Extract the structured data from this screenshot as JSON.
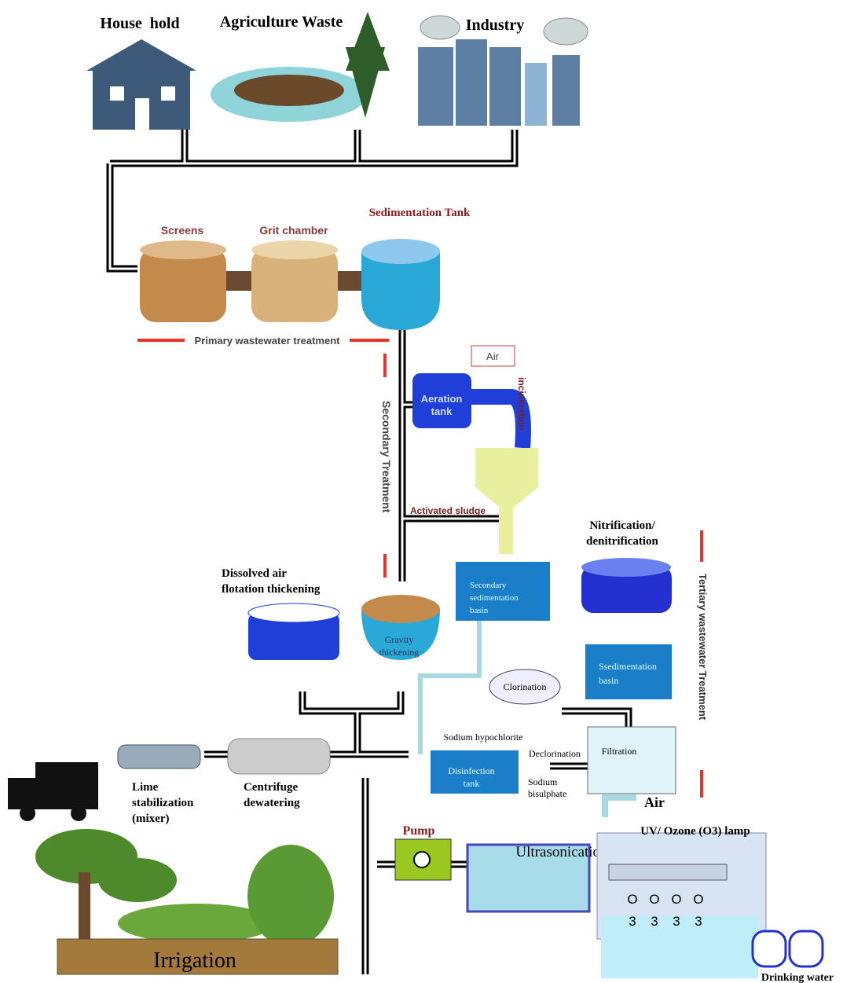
{
  "sources": {
    "household": "House  hold",
    "agriculture": "Agriculture Waste",
    "industry": "Industry"
  },
  "primary": {
    "sedimentation_tank": "Sedimentation Tank",
    "screens": "Screens",
    "grit_chamber": "Grit chamber",
    "label": "Primary wastewater treatment"
  },
  "secondary": {
    "label": "Secondary Treatment",
    "air": "Air",
    "aeration_tank": [
      "Aeration",
      "tank"
    ],
    "incineration": "incineration",
    "activated_sludge": "Activated sludge",
    "secondary_sedimentation": [
      "Secondary",
      "sedimentation",
      "basin"
    ],
    "gravity_thickening": [
      "Gravity",
      "thickening"
    ],
    "dissolved_air": [
      "Dissolved air",
      "flotation thickening"
    ]
  },
  "tertiary": {
    "label": "Tertiary wastewater Treatment",
    "nitrification": [
      "Nitrification/",
      "denitrification"
    ],
    "ssedimentation": [
      "Ssedimentation",
      "basin"
    ],
    "clorination": "Clorination",
    "filtration": "Filtration",
    "sodium_hypochlorite": "Sodium hypochlorite",
    "disinfection": [
      "Disinfection",
      "tank"
    ],
    "declorination": "Declorination",
    "sodium_bisulphate": [
      "Sodium",
      "bisulphate"
    ]
  },
  "sludge": {
    "lime": [
      "Lime",
      "stabilization",
      "(mixer)"
    ],
    "centrifuge": [
      "Centrifuge",
      "dewatering"
    ]
  },
  "advanced": {
    "air": "Air",
    "uv_ozone": "UV/ Ozone (O3) lamp",
    "pump": "Pump",
    "ultrasonication": "Ultrasonication",
    "ozone": [
      {
        "o": "O",
        "sub": "3"
      },
      {
        "o": "O",
        "sub": "3"
      },
      {
        "o": "O",
        "sub": "3"
      },
      {
        "o": "O",
        "sub": "3"
      }
    ],
    "irrigation": "Irrigation",
    "drinking_water": "Drinking water"
  }
}
